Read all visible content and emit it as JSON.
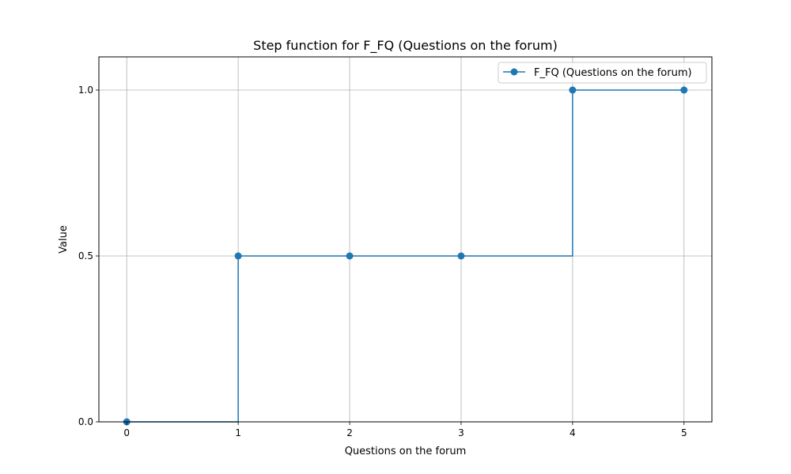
{
  "chart_data": {
    "type": "line",
    "title": "Step function for F_FQ (Questions on the forum)",
    "xlabel": "Questions on the forum",
    "ylabel": "Value",
    "xlim": [
      -0.25,
      5.25
    ],
    "ylim": [
      0.0,
      1.1
    ],
    "xticks": [
      0,
      1,
      2,
      3,
      4,
      5
    ],
    "xtick_labels": [
      "0",
      "1",
      "2",
      "3",
      "4",
      "5"
    ],
    "yticks": [
      0.0,
      0.5,
      1.0
    ],
    "ytick_labels": [
      "0.0",
      "0.5",
      "1.0"
    ],
    "grid": true,
    "legend_position": "top-right",
    "step_where": "post",
    "series": [
      {
        "name": "F_FQ (Questions on the forum)",
        "color": "#1f77b4",
        "marker": "circle",
        "x": [
          0,
          1,
          2,
          3,
          4,
          5
        ],
        "y": [
          0.0,
          0.5,
          0.5,
          0.5,
          1.0,
          1.0
        ]
      }
    ]
  }
}
